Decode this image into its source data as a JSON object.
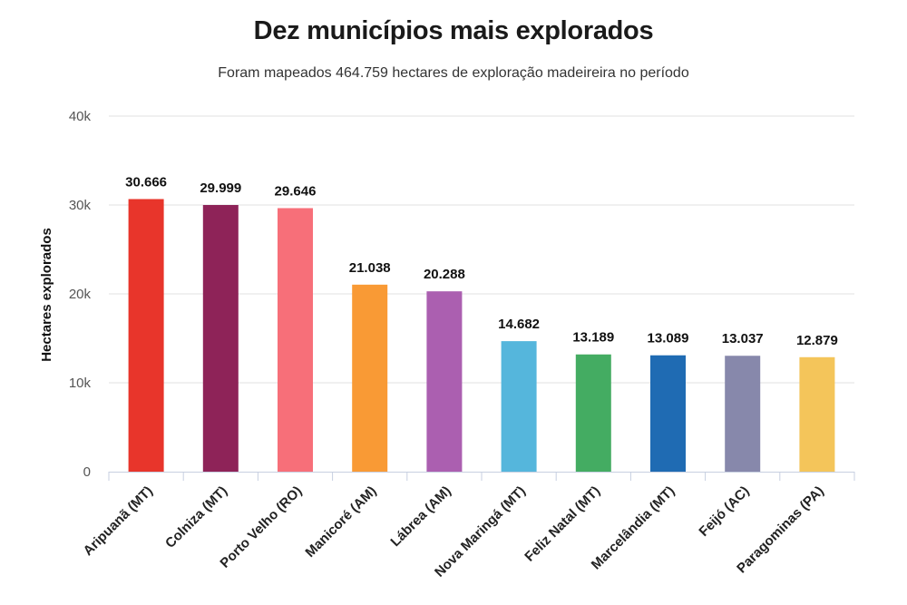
{
  "chart_data": {
    "type": "bar",
    "title": "Dez municípios mais explorados",
    "subtitle": "Foram mapeados 464.759 hectares de exploração madeireira no período",
    "xlabel": "",
    "ylabel": "Hectares explorados",
    "ylim": [
      0,
      40000
    ],
    "yticks": [
      0,
      10000,
      20000,
      30000,
      40000
    ],
    "ytick_labels": [
      "0",
      "10k",
      "20k",
      "30k",
      "40k"
    ],
    "grid": true,
    "categories": [
      "Aripuanã (MT)",
      "Colniza (MT)",
      "Porto Velho (RO)",
      "Manicoré (AM)",
      "Lábrea (AM)",
      "Nova Maringá (MT)",
      "Feliz Natal (MT)",
      "Marcelândia (MT)",
      "Feijó (AC)",
      "Paragominas (PA)"
    ],
    "values": [
      30666,
      29999,
      29646,
      21038,
      20288,
      14682,
      13189,
      13089,
      13037,
      12879
    ],
    "value_labels": [
      "30.666",
      "29.999",
      "29.646",
      "21.038",
      "20.288",
      "14.682",
      "13.189",
      "13.089",
      "13.037",
      "12.879"
    ],
    "colors": [
      "#e8352b",
      "#8e2358",
      "#f76f79",
      "#f99a35",
      "#ab5fb0",
      "#55b6dc",
      "#44ac62",
      "#1f6bb3",
      "#8788ab",
      "#f4c55a"
    ]
  }
}
